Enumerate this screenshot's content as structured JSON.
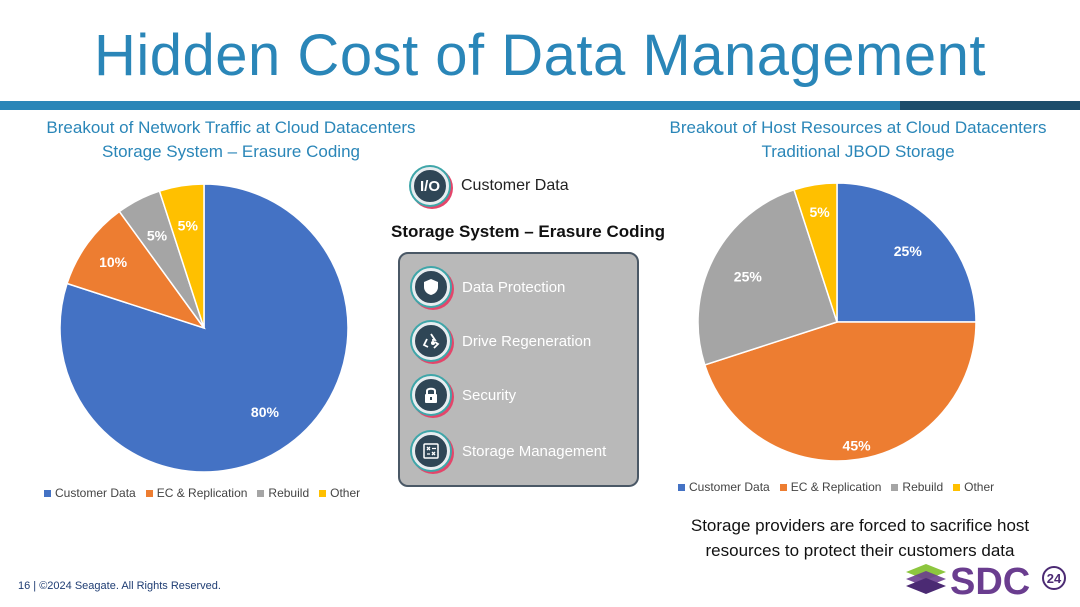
{
  "slide": {
    "title": "Hidden Cost of Data Management",
    "footer": "16 | ©2024 Seagate. All Rights Reserved.",
    "note_lines": [
      "Storage providers are forced to sacrifice host",
      "resources to protect their customers data"
    ],
    "logo_text": "SDC",
    "logo_year": "24"
  },
  "colors": {
    "title": "#2a86b8",
    "rule_main": "#2a86b8",
    "rule_dark": "#1c4d6b",
    "customer_data": "#4472c4",
    "ec_replication": "#ed7d31",
    "rebuild": "#a5a5a5",
    "other": "#ffc000"
  },
  "center": {
    "io_badge": "I/O",
    "io_label": "Customer Data",
    "panel_title": "Storage System – Erasure Coding",
    "items": [
      {
        "label": "Data Protection",
        "icon": "shield-icon"
      },
      {
        "label": "Drive Regeneration",
        "icon": "recycle-icon"
      },
      {
        "label": "Security",
        "icon": "lock-icon"
      },
      {
        "label": "Storage Management",
        "icon": "management-icon"
      }
    ]
  },
  "chart_data": [
    {
      "type": "pie",
      "title_lines": [
        "Breakout of Network Traffic at Cloud Datacenters",
        "Storage System – Erasure Coding"
      ],
      "categories": [
        "Customer Data",
        "EC & Replication",
        "Rebuild",
        "Other"
      ],
      "values": [
        80,
        10,
        5,
        5
      ],
      "data_labels": [
        "80%",
        "10%",
        "5%",
        "5%"
      ],
      "legend": "bottom"
    },
    {
      "type": "pie",
      "title_lines": [
        "Breakout of Host Resources at Cloud Datacenters",
        "Traditional JBOD Storage"
      ],
      "categories": [
        "Customer Data",
        "EC & Replication",
        "Rebuild",
        "Other"
      ],
      "values": [
        25,
        45,
        25,
        5
      ],
      "data_labels": [
        "25%",
        "45%",
        "25%",
        "5%"
      ],
      "legend": "bottom"
    }
  ]
}
